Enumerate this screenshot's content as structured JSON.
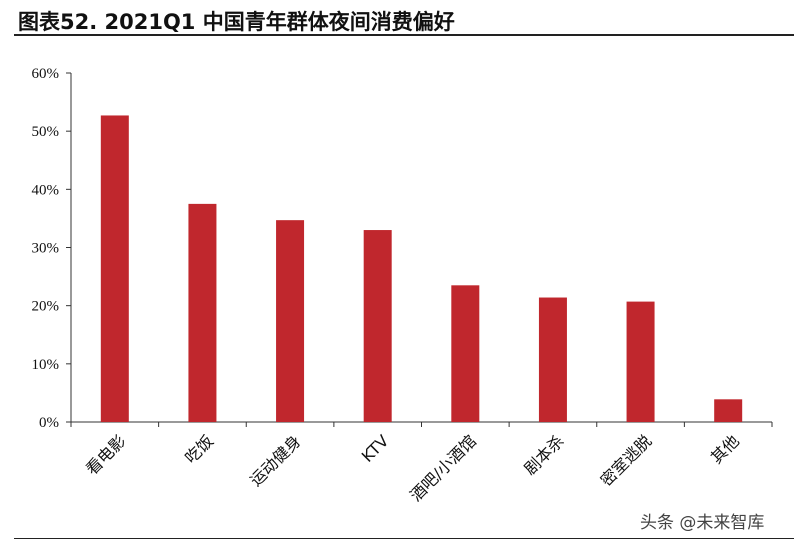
{
  "header": {
    "title": "图表52.  2021Q1 中国青年群体夜间消费偏好"
  },
  "watermark": "头条 @未来智库",
  "colors": {
    "bar": "#c0272d",
    "axis": "#333333"
  },
  "chart_data": {
    "type": "bar",
    "title": "图表52.  2021Q1 中国青年群体夜间消费偏好",
    "xlabel": "",
    "ylabel": "",
    "categories": [
      "看电影",
      "吃饭",
      "运动健身",
      "KTV",
      "酒吧/小酒馆",
      "剧本杀",
      "密室逃脱",
      "其他"
    ],
    "values": [
      52.7,
      37.5,
      34.7,
      33.0,
      23.5,
      21.4,
      20.7,
      3.9
    ],
    "ylim": [
      0,
      60
    ],
    "yticks": [
      0,
      10,
      20,
      30,
      40,
      50,
      60
    ],
    "ytick_labels": [
      "0%",
      "10%",
      "20%",
      "30%",
      "40%",
      "50%",
      "60%"
    ],
    "grid": false,
    "legend": "none"
  }
}
